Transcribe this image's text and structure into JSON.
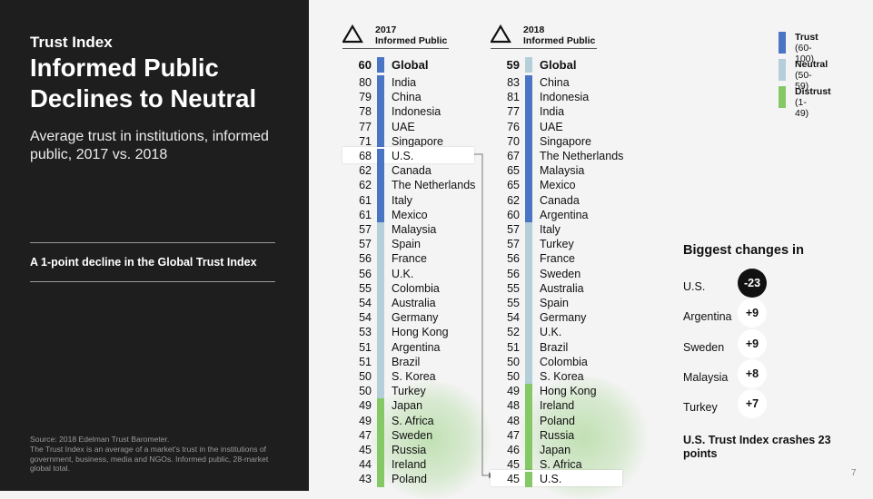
{
  "left": {
    "kicker": "Trust Index",
    "title": "Informed Public Declines to Neutral",
    "subtitle": "Average trust in institutions, informed public, 2017 vs. 2018",
    "callout": "A 1-point decline in the Global Trust Index",
    "source": "Source: 2018 Edelman Trust Barometer.\nThe Trust Index is an average of a market's trust in the institutions of government, business, media and NGOs. Informed public, 28-market global total."
  },
  "colors": {
    "trust": "#4a74c4",
    "neutral": "#b4cfd9",
    "distrust": "#84c966",
    "dark": "#1e1e1e"
  },
  "icons": {
    "column_header": "triangle-icon"
  },
  "chart_data": {
    "type": "table",
    "columns": [
      {
        "year": "2017",
        "label": "Informed Public",
        "rows": [
          {
            "name": "Global",
            "score": 60,
            "level": "trust",
            "global": true
          },
          {
            "name": "India",
            "score": 80,
            "level": "trust"
          },
          {
            "name": "China",
            "score": 79,
            "level": "trust"
          },
          {
            "name": "Indonesia",
            "score": 78,
            "level": "trust"
          },
          {
            "name": "UAE",
            "score": 77,
            "level": "trust"
          },
          {
            "name": "Singapore",
            "score": 71,
            "level": "trust"
          },
          {
            "name": "U.S.",
            "score": 68,
            "level": "trust",
            "highlight": true
          },
          {
            "name": "Canada",
            "score": 62,
            "level": "trust"
          },
          {
            "name": "The Netherlands",
            "score": 62,
            "level": "trust"
          },
          {
            "name": "Italy",
            "score": 61,
            "level": "trust"
          },
          {
            "name": "Mexico",
            "score": 61,
            "level": "trust"
          },
          {
            "name": "Malaysia",
            "score": 57,
            "level": "neutral"
          },
          {
            "name": "Spain",
            "score": 57,
            "level": "neutral"
          },
          {
            "name": "France",
            "score": 56,
            "level": "neutral"
          },
          {
            "name": "U.K.",
            "score": 56,
            "level": "neutral"
          },
          {
            "name": "Colombia",
            "score": 55,
            "level": "neutral"
          },
          {
            "name": "Australia",
            "score": 54,
            "level": "neutral"
          },
          {
            "name": "Germany",
            "score": 54,
            "level": "neutral"
          },
          {
            "name": "Hong Kong",
            "score": 53,
            "level": "neutral"
          },
          {
            "name": "Argentina",
            "score": 51,
            "level": "neutral"
          },
          {
            "name": "Brazil",
            "score": 51,
            "level": "neutral"
          },
          {
            "name": "S. Korea",
            "score": 50,
            "level": "neutral"
          },
          {
            "name": "Turkey",
            "score": 50,
            "level": "neutral"
          },
          {
            "name": "Japan",
            "score": 49,
            "level": "distrust"
          },
          {
            "name": "S. Africa",
            "score": 49,
            "level": "distrust"
          },
          {
            "name": "Sweden",
            "score": 47,
            "level": "distrust"
          },
          {
            "name": "Russia",
            "score": 45,
            "level": "distrust"
          },
          {
            "name": "Ireland",
            "score": 44,
            "level": "distrust"
          },
          {
            "name": "Poland",
            "score": 43,
            "level": "distrust"
          }
        ]
      },
      {
        "year": "2018",
        "label": "Informed Public",
        "rows": [
          {
            "name": "Global",
            "score": 59,
            "level": "neutral",
            "global": true
          },
          {
            "name": "China",
            "score": 83,
            "level": "trust"
          },
          {
            "name": "Indonesia",
            "score": 81,
            "level": "trust"
          },
          {
            "name": "India",
            "score": 77,
            "level": "trust"
          },
          {
            "name": "UAE",
            "score": 76,
            "level": "trust"
          },
          {
            "name": "Singapore",
            "score": 70,
            "level": "trust"
          },
          {
            "name": "The Netherlands",
            "score": 67,
            "level": "trust"
          },
          {
            "name": "Malaysia",
            "score": 65,
            "level": "trust"
          },
          {
            "name": "Mexico",
            "score": 65,
            "level": "trust"
          },
          {
            "name": "Canada",
            "score": 62,
            "level": "trust"
          },
          {
            "name": "Argentina",
            "score": 60,
            "level": "trust"
          },
          {
            "name": "Italy",
            "score": 57,
            "level": "neutral"
          },
          {
            "name": "Turkey",
            "score": 57,
            "level": "neutral"
          },
          {
            "name": "France",
            "score": 56,
            "level": "neutral"
          },
          {
            "name": "Sweden",
            "score": 56,
            "level": "neutral"
          },
          {
            "name": "Australia",
            "score": 55,
            "level": "neutral"
          },
          {
            "name": "Spain",
            "score": 55,
            "level": "neutral"
          },
          {
            "name": "Germany",
            "score": 54,
            "level": "neutral"
          },
          {
            "name": "U.K.",
            "score": 52,
            "level": "neutral"
          },
          {
            "name": "Brazil",
            "score": 51,
            "level": "neutral"
          },
          {
            "name": "Colombia",
            "score": 50,
            "level": "neutral"
          },
          {
            "name": "S. Korea",
            "score": 50,
            "level": "neutral"
          },
          {
            "name": "Hong Kong",
            "score": 49,
            "level": "distrust"
          },
          {
            "name": "Ireland",
            "score": 48,
            "level": "distrust"
          },
          {
            "name": "Poland",
            "score": 48,
            "level": "distrust"
          },
          {
            "name": "Russia",
            "score": 47,
            "level": "distrust"
          },
          {
            "name": "Japan",
            "score": 46,
            "level": "distrust"
          },
          {
            "name": "S. Africa",
            "score": 45,
            "level": "distrust"
          },
          {
            "name": "U.S.",
            "score": 45,
            "level": "distrust",
            "highlight": true
          }
        ]
      }
    ],
    "legend": [
      {
        "label": "Trust",
        "range": "(60-100)",
        "level": "trust"
      },
      {
        "label": "Neutral",
        "range": "(50-59)",
        "level": "neutral"
      },
      {
        "label": "Distrust",
        "range": "(1-49)",
        "level": "distrust"
      }
    ]
  },
  "biggest_changes": {
    "title": "Biggest changes in",
    "items": [
      {
        "country": "U.S.",
        "change": "-23",
        "dark": true
      },
      {
        "country": "Argentina",
        "change": "+9"
      },
      {
        "country": "Sweden",
        "change": "+9"
      },
      {
        "country": "Malaysia",
        "change": "+8"
      },
      {
        "country": "Turkey",
        "change": "+7"
      }
    ]
  },
  "crash_note": "U.S. Trust Index crashes 23 points",
  "page_number": "7"
}
